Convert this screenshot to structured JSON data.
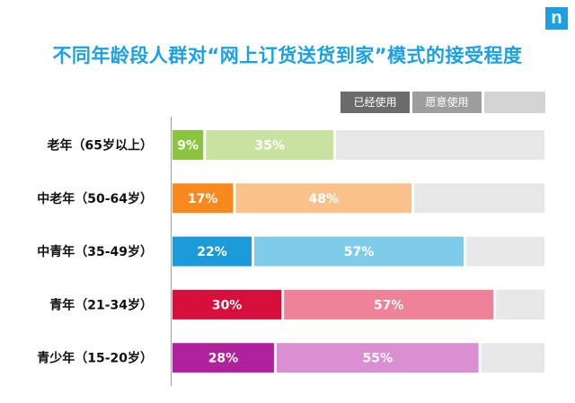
{
  "logo": {
    "text": "n",
    "color": "#1ba0e1"
  },
  "chart_data": {
    "type": "bar",
    "orientation": "horizontal",
    "stacked": true,
    "title": "不同年龄段人群对“网上订货送货到家”模式的接受程度",
    "categories": [
      "老年（65岁以上）",
      "中老年（50-64岁）",
      "中青年（35-49岁）",
      "青年（21-34岁）",
      "青少年（15-20岁）"
    ],
    "series": [
      {
        "name": "已经使用",
        "values": [
          9,
          17,
          22,
          30,
          28
        ],
        "labels": [
          "9%",
          "17%",
          "22%",
          "30%",
          "28%"
        ],
        "colors": [
          "#8bc53f",
          "#f7891f",
          "#1a9ad6",
          "#d70f3c",
          "#b0229c"
        ]
      },
      {
        "name": "愿意使用",
        "values": [
          35,
          48,
          57,
          57,
          55
        ],
        "labels": [
          "35%",
          "48%",
          "57%",
          "57%",
          "55%"
        ],
        "colors": [
          "#c9e2a0",
          "#fac28a",
          "#7fcbea",
          "#ee8299",
          "#d98fd2"
        ]
      },
      {
        "name": "",
        "values": [
          56,
          35,
          21,
          13,
          17
        ],
        "colors": [
          "#e7e7e7",
          "#e7e7e7",
          "#e7e7e7",
          "#e7e7e7",
          "#e7e7e7"
        ]
      }
    ],
    "xlim": [
      0,
      100
    ],
    "legend": [
      {
        "name": "已经使用",
        "color": "#6b6b6b"
      },
      {
        "name": "愿意使用",
        "color": "#9e9e9e"
      },
      {
        "name": "",
        "color": "#d4d4d4"
      }
    ],
    "legend_position": "top-right",
    "grid": false
  }
}
